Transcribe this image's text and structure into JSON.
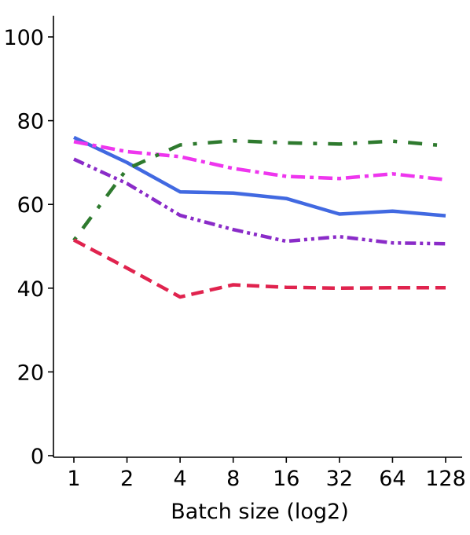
{
  "chart_data": {
    "type": "line",
    "title": "",
    "xlabel": "Batch size (log2)",
    "ylabel": "",
    "x": [
      "1",
      "2",
      "4",
      "8",
      "16",
      "32",
      "64",
      "128"
    ],
    "yticks": [
      "0",
      "20",
      "40",
      "60",
      "80",
      "100"
    ],
    "ylim": [
      0,
      100
    ],
    "grid": false,
    "legend": "none",
    "series": [
      {
        "color": "#4169e1",
        "style": "solid",
        "values": [
          76.0,
          70.0,
          63.0,
          62.7,
          61.4,
          57.7,
          58.4,
          57.3
        ]
      },
      {
        "color": "#ee36ee",
        "style": "dashdot",
        "values": [
          75.0,
          72.6,
          71.4,
          68.6,
          66.7,
          66.2,
          67.3,
          65.9
        ]
      },
      {
        "color": "#2e7a2e",
        "style": "dotdash",
        "values": [
          51.4,
          68.5,
          74.2,
          75.2,
          74.7,
          74.4,
          75.1,
          74.0
        ]
      },
      {
        "color": "#8a2bc8",
        "style": "dashdotdot",
        "values": [
          70.8,
          65.0,
          57.4,
          54.0,
          51.2,
          52.3,
          50.8,
          50.6
        ]
      },
      {
        "color": "#e0234e",
        "style": "dashed",
        "values": [
          51.5,
          44.8,
          37.9,
          40.8,
          40.2,
          40.0,
          40.1,
          40.1
        ]
      }
    ]
  }
}
